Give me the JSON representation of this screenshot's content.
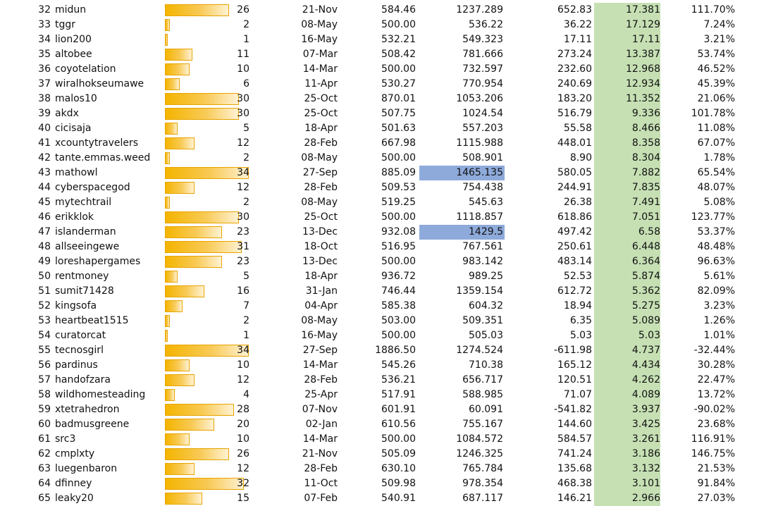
{
  "colors": {
    "bar_fill": "#f4b400",
    "bar_border": "#e8a400",
    "score_column_bg": "#c6e0b4",
    "highlight_cell_bg": "#8eaadb"
  },
  "bar_scale_max": 34,
  "rows": [
    {
      "rank": "32",
      "name": "midun",
      "count": "26",
      "date": "21-Nov",
      "v1": "584.46",
      "v2": "1237.289",
      "diff": "652.83",
      "score": "17.381",
      "pct": "111.70%"
    },
    {
      "rank": "33",
      "name": "tggr",
      "count": "2",
      "date": "08-May",
      "v1": "500.00",
      "v2": "536.22",
      "diff": "36.22",
      "score": "17.129",
      "pct": "7.24%"
    },
    {
      "rank": "34",
      "name": "lion200",
      "count": "1",
      "date": "16-May",
      "v1": "532.21",
      "v2": "549.323",
      "diff": "17.11",
      "score": "17.11",
      "pct": "3.21%"
    },
    {
      "rank": "35",
      "name": "altobee",
      "count": "11",
      "date": "07-Mar",
      "v1": "508.42",
      "v2": "781.666",
      "diff": "273.24",
      "score": "13.387",
      "pct": "53.74%"
    },
    {
      "rank": "36",
      "name": "coyotelation",
      "count": "10",
      "date": "14-Mar",
      "v1": "500.00",
      "v2": "732.597",
      "diff": "232.60",
      "score": "12.968",
      "pct": "46.52%"
    },
    {
      "rank": "37",
      "name": "wiralhokseumawe",
      "count": "6",
      "date": "11-Apr",
      "v1": "530.27",
      "v2": "770.954",
      "diff": "240.69",
      "score": "12.934",
      "pct": "45.39%"
    },
    {
      "rank": "38",
      "name": "malos10",
      "count": "30",
      "date": "25-Oct",
      "v1": "870.01",
      "v2": "1053.206",
      "diff": "183.20",
      "score": "11.352",
      "pct": "21.06%"
    },
    {
      "rank": "39",
      "name": "akdx",
      "count": "30",
      "date": "25-Oct",
      "v1": "507.75",
      "v2": "1024.54",
      "diff": "516.79",
      "score": "9.336",
      "pct": "101.78%"
    },
    {
      "rank": "40",
      "name": "cicisaja",
      "count": "5",
      "date": "18-Apr",
      "v1": "501.63",
      "v2": "557.203",
      "diff": "55.58",
      "score": "8.466",
      "pct": "11.08%"
    },
    {
      "rank": "41",
      "name": "xcountytravelers",
      "count": "12",
      "date": "28-Feb",
      "v1": "667.98",
      "v2": "1115.988",
      "diff": "448.01",
      "score": "8.358",
      "pct": "67.07%"
    },
    {
      "rank": "42",
      "name": "tante.emmas.weed",
      "count": "2",
      "date": "08-May",
      "v1": "500.00",
      "v2": "508.901",
      "diff": "8.90",
      "score": "8.304",
      "pct": "1.78%"
    },
    {
      "rank": "43",
      "name": "mathowl",
      "count": "34",
      "date": "27-Sep",
      "v1": "885.09",
      "v2": "1465.135",
      "diff": "580.05",
      "score": "7.882",
      "pct": "65.54%",
      "highlight": true
    },
    {
      "rank": "44",
      "name": "cyberspacegod",
      "count": "12",
      "date": "28-Feb",
      "v1": "509.53",
      "v2": "754.438",
      "diff": "244.91",
      "score": "7.835",
      "pct": "48.07%"
    },
    {
      "rank": "45",
      "name": "mytechtrail",
      "count": "2",
      "date": "08-May",
      "v1": "519.25",
      "v2": "545.63",
      "diff": "26.38",
      "score": "7.491",
      "pct": "5.08%"
    },
    {
      "rank": "46",
      "name": "erikklok",
      "count": "30",
      "date": "25-Oct",
      "v1": "500.00",
      "v2": "1118.857",
      "diff": "618.86",
      "score": "7.051",
      "pct": "123.77%"
    },
    {
      "rank": "47",
      "name": "islanderman",
      "count": "23",
      "date": "13-Dec",
      "v1": "932.08",
      "v2": "1429.5",
      "diff": "497.42",
      "score": "6.58",
      "pct": "53.37%",
      "highlight": true
    },
    {
      "rank": "48",
      "name": "allseeingewe",
      "count": "31",
      "date": "18-Oct",
      "v1": "516.95",
      "v2": "767.561",
      "diff": "250.61",
      "score": "6.448",
      "pct": "48.48%"
    },
    {
      "rank": "49",
      "name": "loreshapergames",
      "count": "23",
      "date": "13-Dec",
      "v1": "500.00",
      "v2": "983.142",
      "diff": "483.14",
      "score": "6.364",
      "pct": "96.63%"
    },
    {
      "rank": "50",
      "name": "rentmoney",
      "count": "5",
      "date": "18-Apr",
      "v1": "936.72",
      "v2": "989.25",
      "diff": "52.53",
      "score": "5.874",
      "pct": "5.61%"
    },
    {
      "rank": "51",
      "name": "sumit71428",
      "count": "16",
      "date": "31-Jan",
      "v1": "746.44",
      "v2": "1359.154",
      "diff": "612.72",
      "score": "5.362",
      "pct": "82.09%"
    },
    {
      "rank": "52",
      "name": "kingsofa",
      "count": "7",
      "date": "04-Apr",
      "v1": "585.38",
      "v2": "604.32",
      "diff": "18.94",
      "score": "5.275",
      "pct": "3.23%"
    },
    {
      "rank": "53",
      "name": "heartbeat1515",
      "count": "2",
      "date": "08-May",
      "v1": "503.00",
      "v2": "509.351",
      "diff": "6.35",
      "score": "5.089",
      "pct": "1.26%"
    },
    {
      "rank": "54",
      "name": "curatorcat",
      "count": "1",
      "date": "16-May",
      "v1": "500.00",
      "v2": "505.03",
      "diff": "5.03",
      "score": "5.03",
      "pct": "1.01%"
    },
    {
      "rank": "55",
      "name": "tecnosgirl",
      "count": "34",
      "date": "27-Sep",
      "v1": "1886.50",
      "v2": "1274.524",
      "diff": "-611.98",
      "score": "4.737",
      "pct": "-32.44%"
    },
    {
      "rank": "56",
      "name": "pardinus",
      "count": "10",
      "date": "14-Mar",
      "v1": "545.26",
      "v2": "710.38",
      "diff": "165.12",
      "score": "4.434",
      "pct": "30.28%"
    },
    {
      "rank": "57",
      "name": "handofzara",
      "count": "12",
      "date": "28-Feb",
      "v1": "536.21",
      "v2": "656.717",
      "diff": "120.51",
      "score": "4.262",
      "pct": "22.47%"
    },
    {
      "rank": "58",
      "name": "wildhomesteading",
      "count": "4",
      "date": "25-Apr",
      "v1": "517.91",
      "v2": "588.985",
      "diff": "71.07",
      "score": "4.089",
      "pct": "13.72%"
    },
    {
      "rank": "59",
      "name": "xtetrahedron",
      "count": "28",
      "date": "07-Nov",
      "v1": "601.91",
      "v2": "60.091",
      "diff": "-541.82",
      "score": "3.937",
      "pct": "-90.02%"
    },
    {
      "rank": "60",
      "name": "badmusgreene",
      "count": "20",
      "date": "02-Jan",
      "v1": "610.56",
      "v2": "755.167",
      "diff": "144.60",
      "score": "3.425",
      "pct": "23.68%"
    },
    {
      "rank": "61",
      "name": "src3",
      "count": "10",
      "date": "14-Mar",
      "v1": "500.00",
      "v2": "1084.572",
      "diff": "584.57",
      "score": "3.261",
      "pct": "116.91%"
    },
    {
      "rank": "62",
      "name": "cmplxty",
      "count": "26",
      "date": "21-Nov",
      "v1": "505.09",
      "v2": "1246.325",
      "diff": "741.24",
      "score": "3.186",
      "pct": "146.75%"
    },
    {
      "rank": "63",
      "name": "luegenbaron",
      "count": "12",
      "date": "28-Feb",
      "v1": "630.10",
      "v2": "765.784",
      "diff": "135.68",
      "score": "3.132",
      "pct": "21.53%"
    },
    {
      "rank": "64",
      "name": "dfinney",
      "count": "32",
      "date": "11-Oct",
      "v1": "509.98",
      "v2": "978.354",
      "diff": "468.38",
      "score": "3.101",
      "pct": "91.84%"
    },
    {
      "rank": "65",
      "name": "leaky20",
      "count": "15",
      "date": "07-Feb",
      "v1": "540.91",
      "v2": "687.117",
      "diff": "146.21",
      "score": "2.966",
      "pct": "27.03%"
    }
  ]
}
